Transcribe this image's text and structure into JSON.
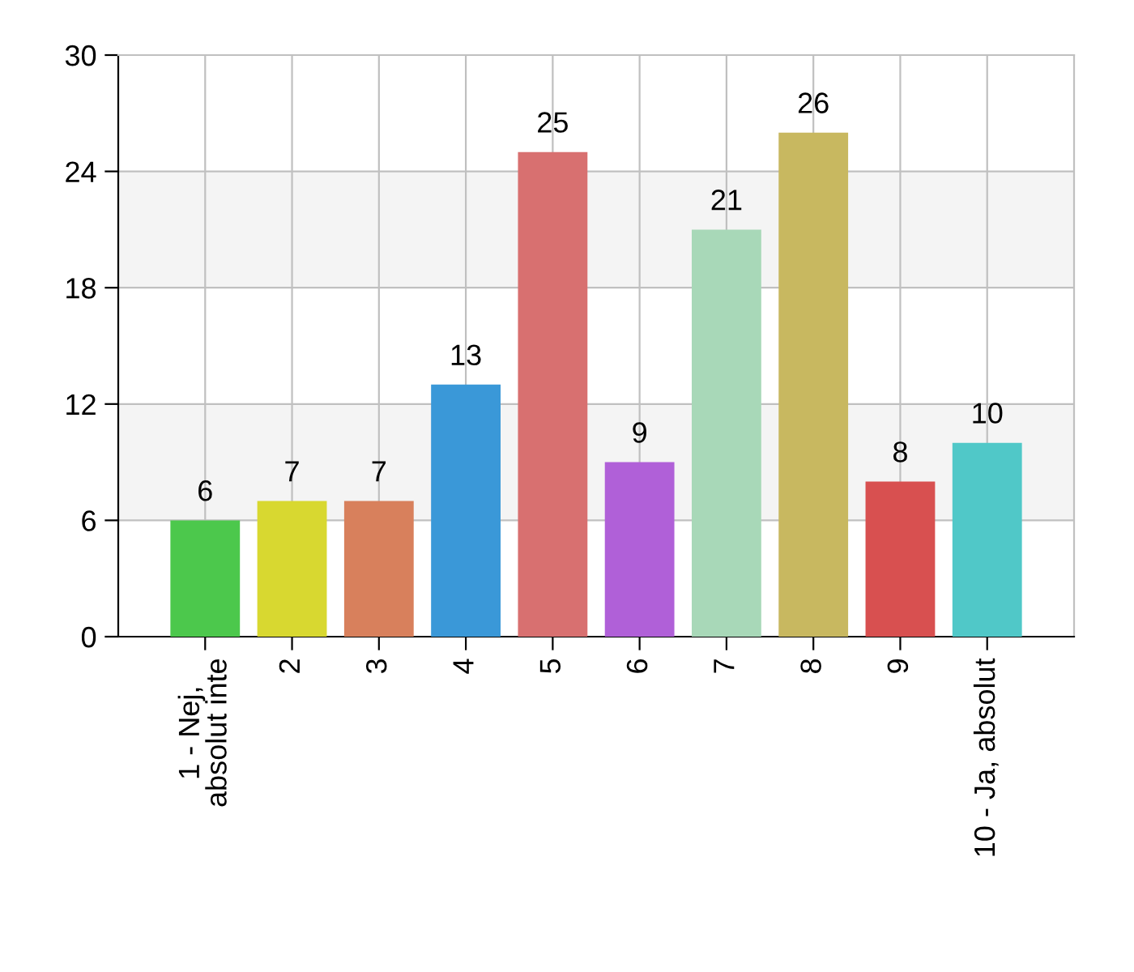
{
  "chart_data": {
    "type": "bar",
    "categories": [
      "1 - Nej,\nabsolut inte",
      "2",
      "3",
      "4",
      "5",
      "6",
      "7",
      "8",
      "9",
      "10 - Ja, absolut"
    ],
    "values": [
      6,
      7,
      7,
      13,
      25,
      9,
      21,
      26,
      8,
      10
    ],
    "colors": [
      "#4cc84c",
      "#d8d830",
      "#d8805c",
      "#3a98d8",
      "#d87070",
      "#b060d8",
      "#a8d8b8",
      "#c8b860",
      "#d85050",
      "#50c8c8"
    ],
    "ylim": [
      0,
      30
    ],
    "yticks": [
      0,
      6,
      12,
      18,
      24,
      30
    ],
    "bands": [
      {
        "axis": "y",
        "from": 6,
        "to": 12,
        "label": null,
        "color": "#f4f4f4"
      },
      {
        "axis": "y",
        "from": 18,
        "to": 24,
        "label": null,
        "color": "#f4f4f4"
      }
    ],
    "grid": true,
    "data_labels": true
  }
}
